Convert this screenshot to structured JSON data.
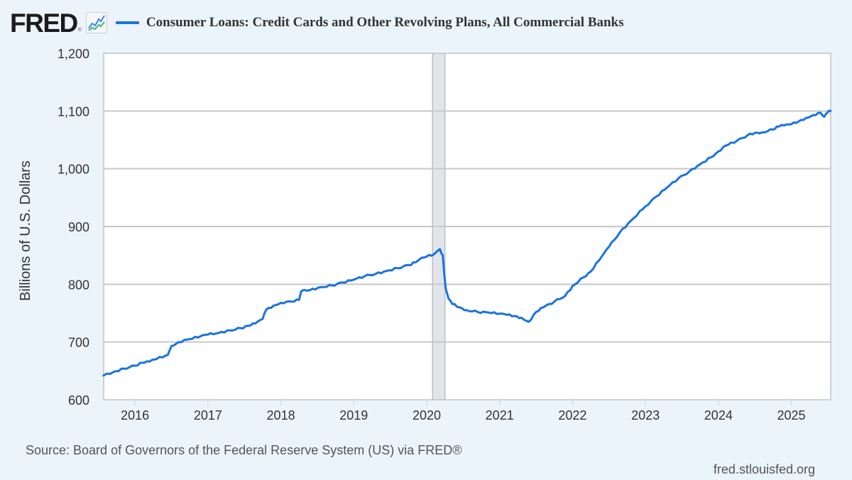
{
  "header": {
    "logo_text": "FRED",
    "logo_reg": "®",
    "logo_icon": "line-chart-icon",
    "series_title": "Consumer Loans: Credit Cards and Other Revolving Plans, All Commercial Banks"
  },
  "footer": {
    "source": "Source: Board of Governors of the Federal Reserve System (US) via FRED®",
    "site": "fred.stlouisfed.org"
  },
  "colors": {
    "line": "#1a73e0",
    "background": "#ebf3fb",
    "plot_background": "#ffffff",
    "grid": "#c8c8c8",
    "recession_band": "#e1e5ea",
    "axis_text": "#333333"
  },
  "chart_data": {
    "type": "line",
    "title": "Consumer Loans: Credit Cards and Other Revolving Plans, All Commercial Banks",
    "xlabel": "",
    "ylabel": "Billions of U.S. Dollars",
    "xlim": [
      2015.57,
      2025.54
    ],
    "ylim": [
      600,
      1200
    ],
    "x_ticks": [
      2016,
      2017,
      2018,
      2019,
      2020,
      2021,
      2022,
      2023,
      2024,
      2025
    ],
    "x_tick_labels": [
      "2016",
      "2017",
      "2018",
      "2019",
      "2020",
      "2021",
      "2022",
      "2023",
      "2024",
      "2025"
    ],
    "y_ticks": [
      600,
      700,
      800,
      900,
      1000,
      1100,
      1200
    ],
    "y_tick_labels": [
      "600",
      "700",
      "800",
      "900",
      "1,000",
      "1,100",
      "1,200"
    ],
    "grid": "horizontal",
    "legend_position": "top",
    "recessions": [
      {
        "start": 2020.08,
        "end": 2020.25
      }
    ],
    "series": [
      {
        "name": "Consumer Loans: Credit Cards and Other Revolving Plans, All Commercial Banks",
        "x": [
          2015.57,
          2015.7,
          2015.85,
          2016.0,
          2016.1,
          2016.2,
          2016.3,
          2016.45,
          2016.5,
          2016.6,
          2016.75,
          2016.9,
          2017.0,
          2017.15,
          2017.3,
          2017.45,
          2017.55,
          2017.65,
          2017.75,
          2017.8,
          2017.9,
          2018.0,
          2018.15,
          2018.25,
          2018.28,
          2018.4,
          2018.55,
          2018.7,
          2018.85,
          2019.0,
          2019.15,
          2019.3,
          2019.45,
          2019.6,
          2019.75,
          2019.85,
          2019.9,
          2020.0,
          2020.1,
          2020.18,
          2020.22,
          2020.26,
          2020.3,
          2020.35,
          2020.45,
          2020.55,
          2020.7,
          2020.85,
          2021.0,
          2021.1,
          2021.2,
          2021.3,
          2021.4,
          2021.5,
          2021.6,
          2021.75,
          2021.9,
          2022.0,
          2022.15,
          2022.25,
          2022.4,
          2022.5,
          2022.65,
          2022.8,
          2023.0,
          2023.15,
          2023.3,
          2023.45,
          2023.6,
          2023.75,
          2023.9,
          2024.0,
          2024.1,
          2024.25,
          2024.4,
          2024.5,
          2024.6,
          2024.75,
          2024.8,
          2024.9,
          2025.0,
          2025.1,
          2025.2,
          2025.3,
          2025.4,
          2025.45,
          2025.5,
          2025.54
        ],
        "values": [
          642,
          648,
          654,
          659,
          664,
          666,
          671,
          678,
          693,
          700,
          705,
          710,
          713,
          716,
          720,
          724,
          728,
          732,
          740,
          756,
          763,
          768,
          770,
          773,
          788,
          790,
          795,
          798,
          803,
          808,
          814,
          818,
          823,
          828,
          833,
          838,
          843,
          848,
          852,
          861,
          850,
          793,
          775,
          766,
          760,
          755,
          752,
          751,
          749,
          747,
          745,
          742,
          735,
          752,
          760,
          770,
          780,
          797,
          812,
          822,
          848,
          865,
          890,
          910,
          935,
          952,
          968,
          983,
          995,
          1008,
          1020,
          1030,
          1040,
          1048,
          1058,
          1062,
          1063,
          1068,
          1073,
          1075,
          1077,
          1082,
          1088,
          1093,
          1097,
          1090,
          1098,
          1100
        ]
      }
    ]
  }
}
